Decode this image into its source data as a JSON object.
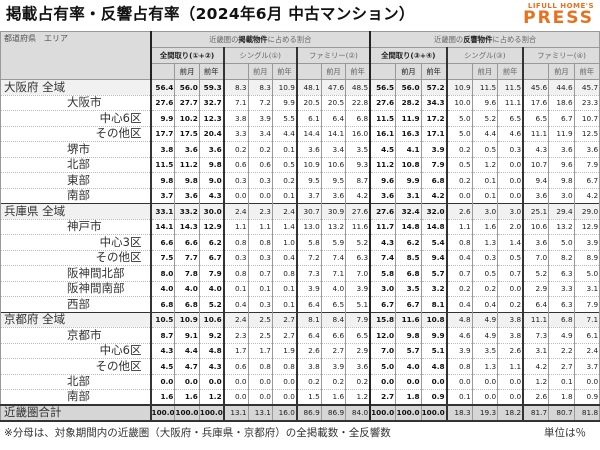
{
  "title": "掲載占有率・反響占有率（2024年6月 中古マンション）",
  "logo": {
    "line1": "LIFULL HOME'S",
    "line2": "PRESS",
    "color": "#e8711e"
  },
  "header": {
    "corner": "都道府県　エリア",
    "listing_group": {
      "pre": "近畿圏の",
      "bold": "掲載物件",
      "post": "に占める割合"
    },
    "response_group": {
      "pre": "近畿圏の",
      "bold": "反響物件",
      "post": "に占める割合"
    },
    "sub_listing": [
      "全間取り(①+②)",
      "シングル(①)",
      "ファミリー(②)"
    ],
    "sub_response": [
      "全間取り(③+④)",
      "シングル(③)",
      "ファミリー(④)"
    ],
    "prev_month": "前月",
    "prev_year": "前年"
  },
  "rows": [
    {
      "label": "大阪府 全域",
      "level": 0,
      "values": [
        56.4,
        56.0,
        59.3,
        8.3,
        8.3,
        10.9,
        48.1,
        47.6,
        48.5,
        56.5,
        56.0,
        57.2,
        10.9,
        11.5,
        11.5,
        45.6,
        44.6,
        45.7
      ]
    },
    {
      "label": "大阪市",
      "level": 1,
      "values": [
        27.6,
        27.7,
        32.7,
        7.1,
        7.2,
        9.9,
        20.5,
        20.5,
        22.8,
        27.6,
        28.2,
        34.3,
        10.0,
        9.6,
        11.1,
        17.6,
        18.6,
        23.3
      ]
    },
    {
      "label": "中心6区",
      "level": 2,
      "values": [
        9.9,
        10.2,
        12.3,
        3.8,
        3.9,
        5.5,
        6.1,
        6.4,
        6.8,
        11.5,
        11.9,
        17.2,
        5.0,
        5.2,
        6.5,
        6.5,
        6.7,
        10.7
      ]
    },
    {
      "label": "その他区",
      "level": 2,
      "values": [
        17.7,
        17.5,
        20.4,
        3.3,
        3.4,
        4.4,
        14.4,
        14.1,
        16.0,
        16.1,
        16.3,
        17.1,
        5.0,
        4.4,
        4.6,
        11.1,
        11.9,
        12.5
      ]
    },
    {
      "label": "堺市",
      "level": 1,
      "values": [
        3.8,
        3.6,
        3.6,
        0.2,
        0.2,
        0.1,
        3.6,
        3.4,
        3.5,
        4.5,
        4.1,
        3.9,
        0.2,
        0.5,
        0.3,
        4.3,
        3.6,
        3.6
      ]
    },
    {
      "label": "北部",
      "level": 1,
      "values": [
        11.5,
        11.2,
        9.8,
        0.6,
        0.6,
        0.5,
        10.9,
        10.6,
        9.3,
        11.2,
        10.8,
        7.9,
        0.5,
        1.2,
        0.0,
        10.7,
        9.6,
        7.9
      ]
    },
    {
      "label": "東部",
      "level": 1,
      "values": [
        9.8,
        9.8,
        9.0,
        0.3,
        0.3,
        0.2,
        9.5,
        9.5,
        8.7,
        9.6,
        9.9,
        6.8,
        0.2,
        0.1,
        0.0,
        9.4,
        9.8,
        6.7
      ]
    },
    {
      "label": "南部",
      "level": 1,
      "values": [
        3.7,
        3.6,
        4.3,
        0.0,
        0.0,
        0.1,
        3.7,
        3.6,
        4.2,
        3.6,
        3.1,
        4.2,
        0.0,
        0.1,
        0.0,
        3.6,
        3.0,
        4.2
      ]
    },
    {
      "label": "兵庫県 全域",
      "level": 0,
      "values": [
        33.1,
        33.2,
        30.0,
        2.4,
        2.3,
        2.4,
        30.7,
        30.9,
        27.6,
        27.6,
        32.4,
        32.0,
        2.6,
        3.0,
        3.0,
        25.1,
        29.4,
        29.0
      ]
    },
    {
      "label": "神戸市",
      "level": 1,
      "values": [
        14.1,
        14.3,
        12.9,
        1.1,
        1.1,
        1.4,
        13.0,
        13.2,
        11.6,
        11.7,
        14.8,
        14.8,
        1.1,
        1.6,
        2.0,
        10.6,
        13.2,
        12.9
      ]
    },
    {
      "label": "中心3区",
      "level": 2,
      "values": [
        6.6,
        6.6,
        6.2,
        0.8,
        0.8,
        1.0,
        5.8,
        5.9,
        5.2,
        4.3,
        6.2,
        5.4,
        0.8,
        1.3,
        1.4,
        3.6,
        5.0,
        3.9
      ]
    },
    {
      "label": "その他区",
      "level": 2,
      "values": [
        7.5,
        7.7,
        6.7,
        0.3,
        0.3,
        0.4,
        7.2,
        7.4,
        6.3,
        7.4,
        8.5,
        9.4,
        0.4,
        0.3,
        0.5,
        7.0,
        8.2,
        8.9
      ]
    },
    {
      "label": "阪神間北部",
      "level": 1,
      "values": [
        8.0,
        7.8,
        7.9,
        0.8,
        0.7,
        0.8,
        7.3,
        7.1,
        7.0,
        5.8,
        6.8,
        5.7,
        0.7,
        0.5,
        0.7,
        5.2,
        6.3,
        5.0
      ]
    },
    {
      "label": "阪神間南部",
      "level": 1,
      "values": [
        4.0,
        4.0,
        4.0,
        0.1,
        0.1,
        0.1,
        3.9,
        4.0,
        3.9,
        3.0,
        3.5,
        3.2,
        0.2,
        0.2,
        0.0,
        2.9,
        3.3,
        3.1
      ]
    },
    {
      "label": "西部",
      "level": 1,
      "values": [
        6.8,
        6.8,
        5.2,
        0.4,
        0.3,
        0.1,
        6.4,
        6.5,
        5.1,
        6.7,
        6.7,
        8.1,
        0.4,
        0.4,
        0.2,
        6.4,
        6.3,
        7.9
      ]
    },
    {
      "label": "京都府 全域",
      "level": 0,
      "values": [
        10.5,
        10.9,
        10.6,
        2.4,
        2.5,
        2.7,
        8.1,
        8.4,
        7.9,
        15.8,
        11.6,
        10.8,
        4.8,
        4.9,
        3.8,
        11.1,
        6.8,
        7.1
      ]
    },
    {
      "label": "京都市",
      "level": 1,
      "values": [
        8.7,
        9.1,
        9.2,
        2.3,
        2.5,
        2.7,
        6.4,
        6.6,
        6.5,
        12.0,
        9.8,
        9.9,
        4.6,
        4.9,
        3.8,
        7.3,
        4.9,
        6.1
      ]
    },
    {
      "label": "中心6区",
      "level": 2,
      "values": [
        4.3,
        4.4,
        4.8,
        1.7,
        1.7,
        1.9,
        2.6,
        2.7,
        2.9,
        7.0,
        5.7,
        5.1,
        3.9,
        3.5,
        2.6,
        3.1,
        2.2,
        2.4
      ]
    },
    {
      "label": "その他区",
      "level": 2,
      "values": [
        4.5,
        4.7,
        4.3,
        0.6,
        0.8,
        0.8,
        3.8,
        3.9,
        3.6,
        5.0,
        4.0,
        4.8,
        0.8,
        1.3,
        1.1,
        4.2,
        2.7,
        3.7
      ]
    },
    {
      "label": "北部",
      "level": 1,
      "values": [
        0.0,
        0.0,
        0.0,
        0.0,
        0.0,
        0.0,
        0.2,
        0.2,
        0.2,
        0.0,
        0.0,
        0.0,
        0.0,
        0.0,
        0.0,
        1.2,
        0.1,
        0.0
      ]
    },
    {
      "label": "南部",
      "level": 1,
      "values": [
        1.6,
        1.6,
        1.2,
        0.0,
        0.0,
        0.0,
        1.5,
        1.6,
        1.2,
        2.7,
        1.8,
        0.9,
        0.1,
        0.0,
        0.0,
        2.6,
        1.8,
        0.9
      ]
    },
    {
      "label": "近畿圏合計",
      "level": -1,
      "values": [
        100.0,
        100.0,
        100.0,
        13.1,
        13.1,
        16.0,
        86.9,
        86.9,
        84.0,
        100.0,
        100.0,
        100.0,
        18.3,
        19.3,
        18.2,
        81.7,
        80.7,
        81.8
      ]
    }
  ],
  "footnote": "※分母は、対象期間内の近畿圏（大阪府・兵庫県・京都府）の全掲載数・全反響数",
  "unit": "単位は％"
}
